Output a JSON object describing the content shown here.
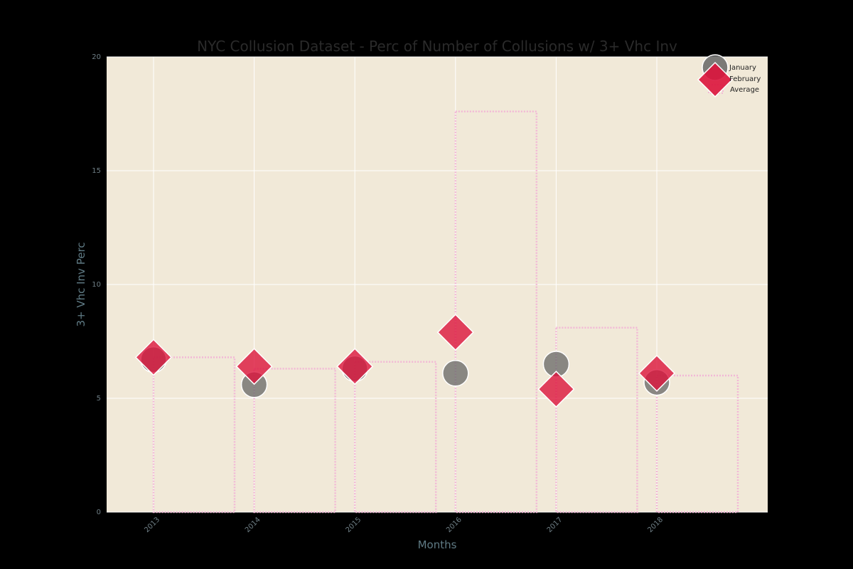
{
  "chart_data": {
    "type": "scatter",
    "title": "NYC Collusion Dataset - Perc of Number of Collusions w/ 3+ Vhc Inv",
    "xlabel": "Months",
    "ylabel": "3+ Vhc Inv Perc",
    "categories": [
      "2013",
      "2014",
      "2015",
      "2016",
      "2017",
      "2018"
    ],
    "yticks": [
      "0",
      "5",
      "10",
      "15",
      "20"
    ],
    "ylim": [
      0,
      20
    ],
    "grid": true,
    "legend_position": "top-right",
    "series": [
      {
        "name": "January",
        "type": "scatter",
        "marker": "circle",
        "color": "#666666",
        "values": [
          6.7,
          5.6,
          6.3,
          6.1,
          6.5,
          5.7
        ]
      },
      {
        "name": "February",
        "type": "scatter",
        "marker": "diamond",
        "color": "#dc143c",
        "values": [
          6.8,
          6.4,
          6.4,
          7.9,
          5.4,
          6.1
        ]
      },
      {
        "name": "Average",
        "type": "step-bar",
        "style": "dotted",
        "color": "#f2b8d6",
        "values": [
          6.8,
          6.3,
          6.6,
          17.6,
          8.1,
          6.0
        ]
      }
    ],
    "colors": {
      "background": "#000000",
      "plot_background": "#f1e9d8",
      "grid": "#ffffff"
    }
  }
}
